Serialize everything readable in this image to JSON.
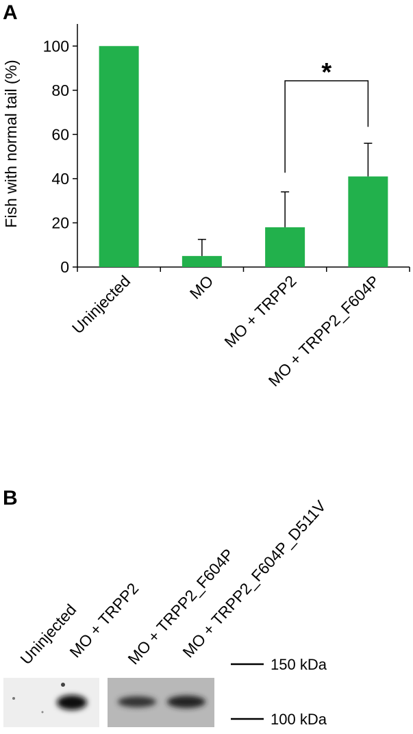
{
  "panel_labels": [
    "A",
    "B"
  ],
  "chart_data": {
    "type": "bar",
    "y_label": "Fish with normal tail  (%)",
    "categories": [
      "Uninjected",
      "MO",
      "MO + TRPP2",
      "MO + TRPP2_F604P"
    ],
    "values": [
      100,
      5,
      18,
      41
    ],
    "errors": [
      null,
      7.5,
      16,
      15
    ],
    "color": "#22b14c",
    "ylim": [
      0,
      110
    ],
    "yticks": [
      0,
      20,
      40,
      60,
      80,
      100
    ],
    "annotation": "*"
  },
  "blot": {
    "lanes": [
      "Uninjected",
      "MO + TRPP2",
      "MO + TRPP2_F604P",
      "MO + TRPP2_F604P_D511V"
    ],
    "markers": [
      "150 kDa",
      "100 kDa"
    ]
  }
}
